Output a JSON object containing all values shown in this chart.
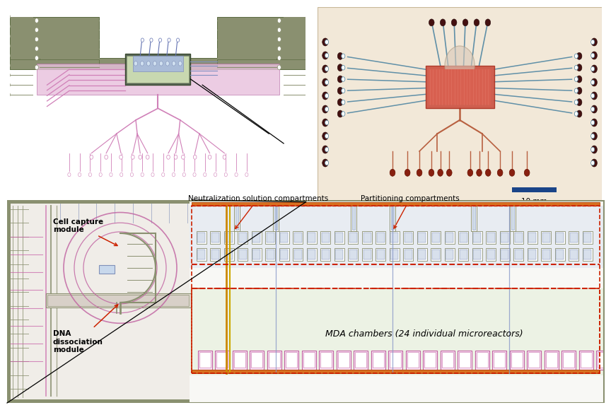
{
  "fig_width": 8.45,
  "fig_height": 5.63,
  "dpi": 100,
  "bg_color": "#ffffff",
  "gc": "#8a9070",
  "pk": "#e8c0dc",
  "bl": "#8090b8",
  "rd": "#cc2200",
  "og": "#cc8800",
  "yw": "#ccaa00",
  "gr": "#e8f0e0",
  "top_left_bg": "#ffffff",
  "top_right_bg": "#f0e8dc",
  "scalebar_color": "#1a4488",
  "scalebar_text": "10 mm",
  "cell_capture_text": "Cell capture\nmodule",
  "dna_text": "DNA\ndissociation\nmodule",
  "neutralization_text": "Neutralization solution compartments",
  "partitioning_text": "Partitioning compartments",
  "mda_text": "MDA chambers (24 individual microreactors)"
}
